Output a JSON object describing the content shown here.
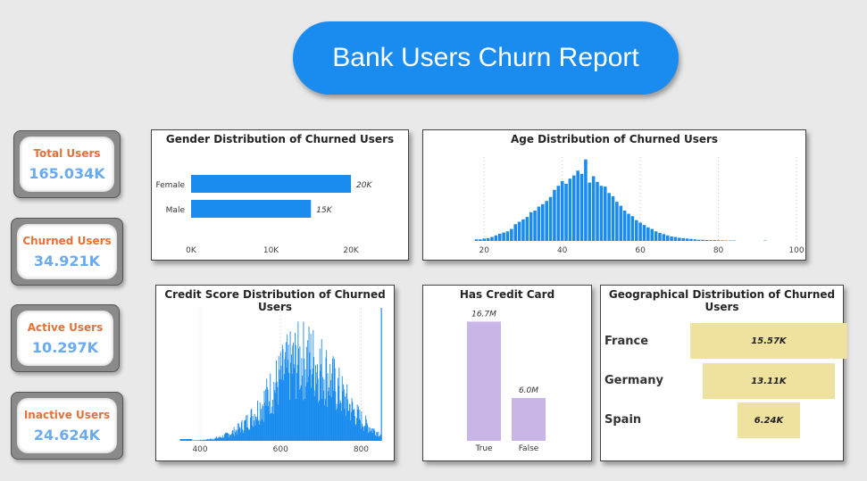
{
  "title": "Bank Users Churn Report",
  "kpis": [
    {
      "label": "Total Users",
      "value": "165.034K"
    },
    {
      "label": "Churned Users",
      "value": "34.921K"
    },
    {
      "label": "Active Users",
      "value": "10.297K"
    },
    {
      "label": "Inactive Users",
      "value": "24.624K"
    }
  ],
  "colors": {
    "accent": "#1a8cf0",
    "kpi_label": "#e0723a",
    "kpi_value": "#6aaaf0",
    "purple_bar": "#c9b5e6",
    "yellow_bar": "#efe19e"
  },
  "chart_data": [
    {
      "type": "bar",
      "orientation": "horizontal",
      "title": "Gender Distribution of Churned Users",
      "categories": [
        "Female",
        "Male"
      ],
      "values": [
        20000,
        15000
      ],
      "data_labels": [
        "20K",
        "15K"
      ],
      "xticks": [
        "0K",
        "10K",
        "20K"
      ],
      "xlim": [
        0,
        21000
      ]
    },
    {
      "type": "bar",
      "title": "Age Distribution of Churned Users",
      "x": [
        18,
        19,
        20,
        21,
        22,
        23,
        24,
        25,
        26,
        27,
        28,
        29,
        30,
        31,
        32,
        33,
        34,
        35,
        36,
        37,
        38,
        39,
        40,
        41,
        42,
        43,
        44,
        45,
        46,
        47,
        48,
        49,
        50,
        51,
        52,
        53,
        54,
        55,
        56,
        57,
        58,
        59,
        60,
        61,
        62,
        63,
        64,
        65,
        66,
        67,
        68,
        69,
        70,
        71,
        72,
        73,
        74,
        75,
        76,
        77,
        78,
        79,
        80,
        81,
        82,
        83,
        84,
        92
      ],
      "values": [
        40,
        40,
        60,
        70,
        100,
        140,
        180,
        210,
        240,
        300,
        420,
        480,
        540,
        600,
        720,
        760,
        860,
        920,
        1000,
        1100,
        1280,
        1380,
        1500,
        1430,
        1560,
        1640,
        1760,
        1680,
        2040,
        1460,
        1620,
        1480,
        1380,
        1360,
        1200,
        1120,
        980,
        880,
        760,
        680,
        620,
        520,
        460,
        400,
        340,
        300,
        240,
        200,
        170,
        140,
        110,
        100,
        80,
        70,
        60,
        50,
        40,
        30,
        30,
        25,
        20,
        20,
        15,
        15,
        10,
        10,
        10,
        10
      ],
      "xticks": [
        20,
        40,
        60,
        80,
        100
      ],
      "xlim": [
        14,
        100
      ],
      "ylim": [
        0,
        2100
      ],
      "grid": true
    },
    {
      "type": "bar",
      "title": "Credit Score Distribution of Churned Users",
      "xticks": [
        400,
        600,
        800
      ],
      "xlim": [
        340,
        850
      ],
      "grid": true
    },
    {
      "type": "bar",
      "title": "Has Credit Card",
      "categories": [
        "True",
        "False"
      ],
      "values": [
        16.7,
        6.0
      ],
      "data_labels": [
        "16.7M",
        "6.0M"
      ],
      "unit": "M",
      "ylim": [
        0,
        18
      ]
    },
    {
      "type": "bar",
      "title": "Geographical Distribution of Churned Users",
      "categories": [
        "France",
        "Germany",
        "Spain"
      ],
      "values": [
        15570,
        13110,
        6240
      ],
      "data_labels": [
        "15.57K",
        "13.11K",
        "6.24K"
      ]
    }
  ]
}
